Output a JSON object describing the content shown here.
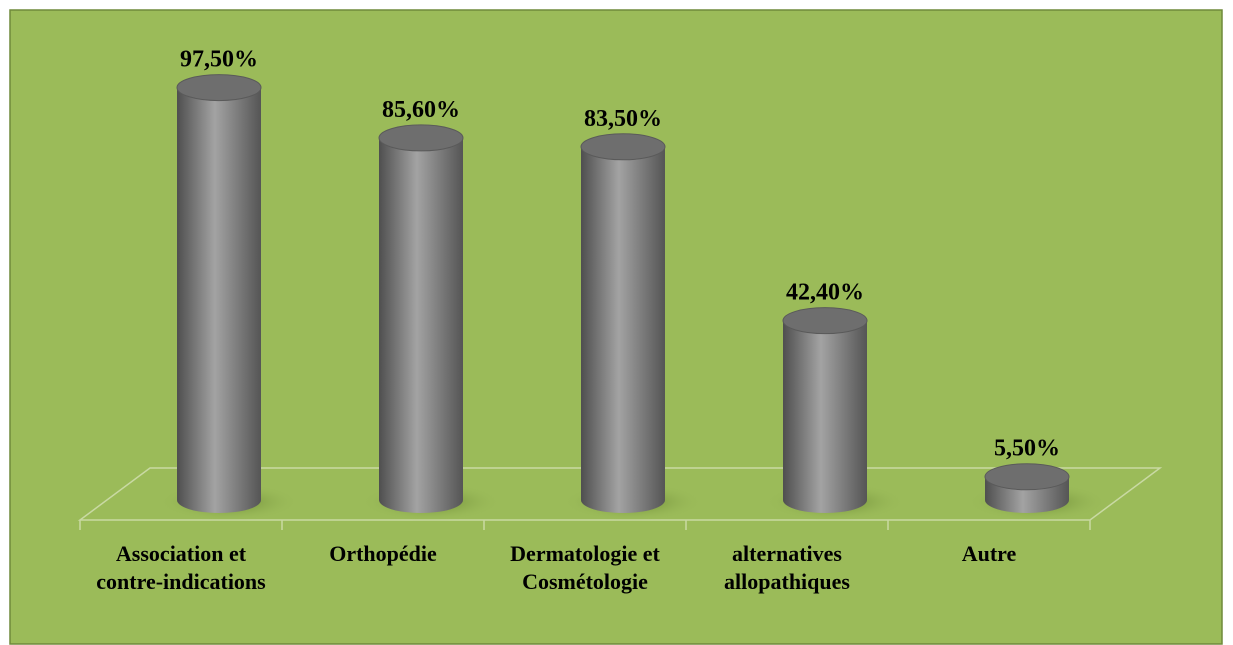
{
  "chart_data": {
    "type": "bar3d-cylinder",
    "categories": [
      "Association et contre-indications",
      "Orthopédie",
      "Dermatologie et Cosmétologie",
      "alternatives allopathiques",
      "Autre"
    ],
    "values": [
      97.5,
      85.6,
      83.5,
      42.4,
      5.5
    ],
    "value_labels": [
      "97,50%",
      "85,60%",
      "83,50%",
      "42,40%",
      "5,50%"
    ],
    "color": "#7f7f7f"
  }
}
